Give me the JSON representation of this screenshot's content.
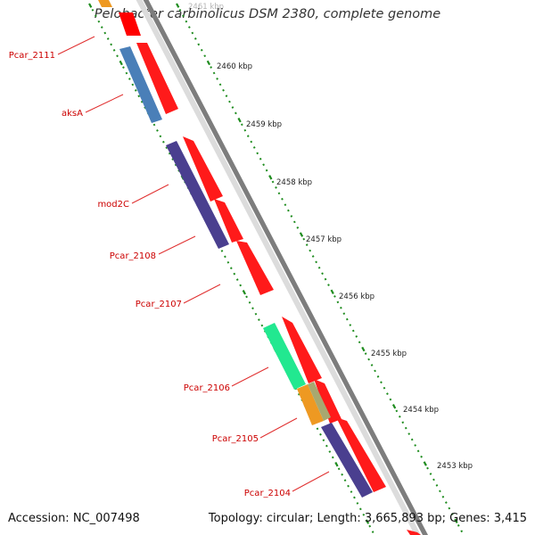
{
  "title": "Pelobacter carbinolicus DSM 2380, complete genome",
  "footer": {
    "accession": "Accession: NC_007498",
    "info": "Topology: circular; Length: 3,665,893 bp; Genes: 3,415"
  },
  "colors": {
    "backbone": "#8a8a8a",
    "tick": "#1e8c1e",
    "gene_label": "#cc0000",
    "leader": "#e03030",
    "fwd_gene": "#ff0000",
    "blue_gene": "#4a7fb8",
    "purple_gene": "#4a3f8f",
    "green_gene": "#22e890",
    "orange_gene": "#ee9922",
    "olive_gene": "#a8a870"
  },
  "kbp_labels": [
    "2461 kbp",
    "2460 kbp",
    "2459 kbp",
    "2458 kbp",
    "2457 kbp",
    "2456 kbp",
    "2455 kbp",
    "2454 kbp",
    "2453 kbp"
  ],
  "gene_labels": [
    "Pcar_2111",
    "aksA",
    "mod2C",
    "Pcar_2108",
    "Pcar_2107",
    "Pcar_2106",
    "Pcar_2105",
    "Pcar_2104"
  ]
}
